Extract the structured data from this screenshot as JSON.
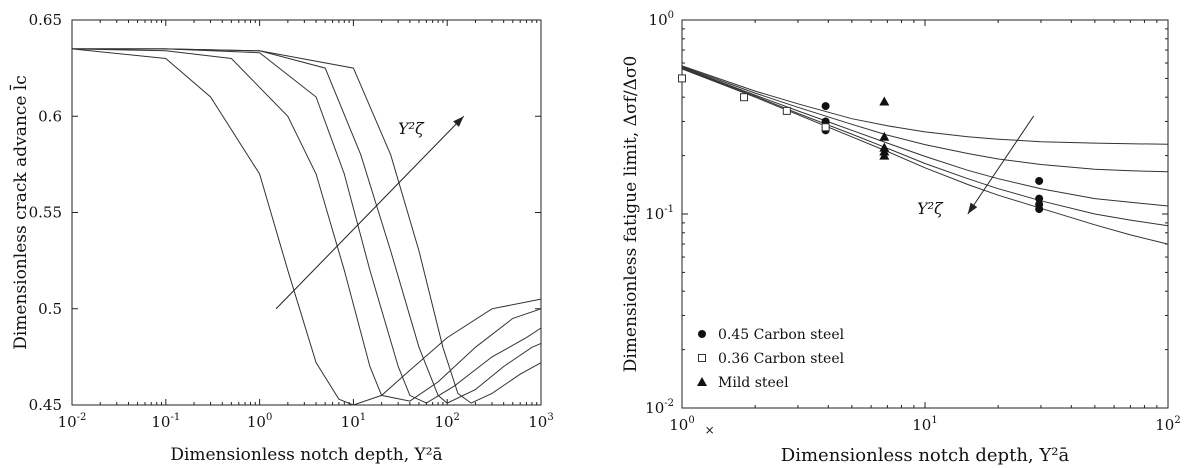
{
  "chart_data": [
    {
      "type": "line",
      "xlabel": "Dimensionless notch depth, Y²ā",
      "ylabel": "Dimensionless crack advance l̄c",
      "xscale": "log",
      "xlim": [
        0.01,
        1000
      ],
      "ylim": [
        0.45,
        0.65
      ],
      "x_ticks": [
        {
          "value": 0.01,
          "base": "10",
          "exp": "-2"
        },
        {
          "value": 0.1,
          "base": "10",
          "exp": "-1"
        },
        {
          "value": 1,
          "base": "10",
          "exp": "0"
        },
        {
          "value": 10,
          "base": "10",
          "exp": "1"
        },
        {
          "value": 100,
          "base": "10",
          "exp": "2"
        },
        {
          "value": 1000,
          "base": "10",
          "exp": "3"
        }
      ],
      "y_ticks": [
        "0.45",
        "0.5",
        "0.55",
        "0.6",
        "0.65"
      ],
      "annotation": {
        "label": "Y²ζ",
        "arrow_from": [
          1.5,
          0.5
        ],
        "arrow_to": [
          150,
          0.6
        ]
      },
      "series": [
        {
          "x": [
            0.01,
            0.1,
            0.3,
            1,
            2,
            4,
            7,
            10,
            20,
            40,
            100,
            300,
            1000
          ],
          "y": [
            0.635,
            0.63,
            0.61,
            0.57,
            0.52,
            0.472,
            0.453,
            0.45,
            0.455,
            0.468,
            0.485,
            0.5,
            0.505
          ]
        },
        {
          "x": [
            0.01,
            0.1,
            0.5,
            2,
            4,
            8,
            15,
            20,
            40,
            80,
            200,
            500,
            1000
          ],
          "y": [
            0.635,
            0.634,
            0.63,
            0.6,
            0.57,
            0.52,
            0.47,
            0.455,
            0.452,
            0.462,
            0.48,
            0.495,
            0.5
          ]
        },
        {
          "x": [
            0.01,
            0.1,
            1,
            4,
            8,
            15,
            30,
            40,
            60,
            120,
            300,
            700,
            1000
          ],
          "y": [
            0.635,
            0.635,
            0.633,
            0.61,
            0.57,
            0.52,
            0.47,
            0.455,
            0.451,
            0.46,
            0.475,
            0.485,
            0.49
          ]
        },
        {
          "x": [
            0.01,
            0.1,
            1,
            5,
            12,
            25,
            50,
            80,
            100,
            200,
            400,
            800,
            1000
          ],
          "y": [
            0.635,
            0.635,
            0.634,
            0.625,
            0.58,
            0.53,
            0.48,
            0.455,
            0.451,
            0.458,
            0.47,
            0.48,
            0.482
          ]
        },
        {
          "x": [
            0.01,
            0.1,
            1,
            10,
            25,
            50,
            90,
            130,
            180,
            300,
            600,
            1000
          ],
          "y": [
            0.635,
            0.635,
            0.634,
            0.625,
            0.58,
            0.53,
            0.48,
            0.456,
            0.451,
            0.456,
            0.466,
            0.472
          ]
        }
      ]
    },
    {
      "type": "line",
      "xlabel": "Dimensionless notch depth, Y²ā",
      "ylabel": "Dimensionless fatigue limit, Δσf/Δσ0",
      "xscale": "log",
      "yscale": "log",
      "xlim": [
        1,
        100
      ],
      "ylim": [
        0.01,
        1
      ],
      "x_ticks": [
        {
          "value": 1,
          "base": "10",
          "exp": "0"
        },
        {
          "value": 10,
          "base": "10",
          "exp": "1"
        },
        {
          "value": 100,
          "base": "10",
          "exp": "2"
        }
      ],
      "y_ticks": [
        {
          "value": 0.01,
          "base": "10",
          "exp": "-2"
        },
        {
          "value": 0.1,
          "base": "10",
          "exp": "-1"
        },
        {
          "value": 1,
          "base": "10",
          "exp": "0"
        }
      ],
      "annotation": {
        "label": "Y²ζ",
        "arrow_from": [
          28,
          0.32
        ],
        "arrow_to": [
          15,
          0.1
        ]
      },
      "legend": {
        "position": "bottom-left",
        "entries": [
          {
            "name": "0.45 Carbon steel",
            "marker": "circle"
          },
          {
            "name": "0.36 Carbon steel",
            "marker": "square"
          },
          {
            "name": "Mild steel",
            "marker": "triangle"
          }
        ]
      },
      "series": [
        {
          "x": [
            1,
            2,
            3,
            5,
            7,
            10,
            15,
            20,
            30,
            50,
            70,
            100
          ],
          "y": [
            0.58,
            0.43,
            0.37,
            0.31,
            0.285,
            0.265,
            0.25,
            0.243,
            0.236,
            0.232,
            0.23,
            0.229
          ]
        },
        {
          "x": [
            1,
            2,
            3,
            5,
            7,
            10,
            15,
            20,
            30,
            50,
            70,
            100
          ],
          "y": [
            0.575,
            0.42,
            0.355,
            0.29,
            0.255,
            0.228,
            0.205,
            0.192,
            0.18,
            0.17,
            0.167,
            0.165
          ]
        },
        {
          "x": [
            1,
            2,
            3,
            5,
            7,
            10,
            15,
            20,
            30,
            50,
            70,
            100
          ],
          "y": [
            0.57,
            0.41,
            0.34,
            0.27,
            0.232,
            0.198,
            0.168,
            0.152,
            0.135,
            0.12,
            0.115,
            0.11
          ]
        },
        {
          "x": [
            1,
            2,
            3,
            5,
            7,
            10,
            15,
            20,
            30,
            50,
            70,
            100
          ],
          "y": [
            0.565,
            0.405,
            0.33,
            0.258,
            0.218,
            0.182,
            0.152,
            0.135,
            0.117,
            0.1,
            0.093,
            0.087
          ]
        },
        {
          "x": [
            1,
            2,
            3,
            5,
            7,
            10,
            15,
            20,
            30,
            50,
            70,
            100
          ],
          "y": [
            0.56,
            0.4,
            0.325,
            0.25,
            0.21,
            0.173,
            0.142,
            0.125,
            0.107,
            0.088,
            0.078,
            0.07
          ]
        }
      ],
      "markers": {
        "circle": {
          "x": [
            3.9,
            3.9,
            3.9,
            3.9,
            29.5,
            29.5,
            29.5,
            29.5
          ],
          "y": [
            0.36,
            0.3,
            0.28,
            0.27,
            0.148,
            0.12,
            0.112,
            0.106
          ]
        },
        "square": {
          "x": [
            1,
            1.8,
            2.7,
            3.9
          ],
          "y": [
            0.5,
            0.4,
            0.34,
            0.28
          ]
        },
        "triangle": {
          "x": [
            6.8,
            6.8,
            6.8,
            6.8,
            6.8
          ],
          "y": [
            0.38,
            0.25,
            0.22,
            0.21,
            0.2
          ]
        }
      },
      "extra_marks": [
        {
          "label": "×",
          "x": 1.3,
          "y": 0.01
        }
      ]
    }
  ]
}
